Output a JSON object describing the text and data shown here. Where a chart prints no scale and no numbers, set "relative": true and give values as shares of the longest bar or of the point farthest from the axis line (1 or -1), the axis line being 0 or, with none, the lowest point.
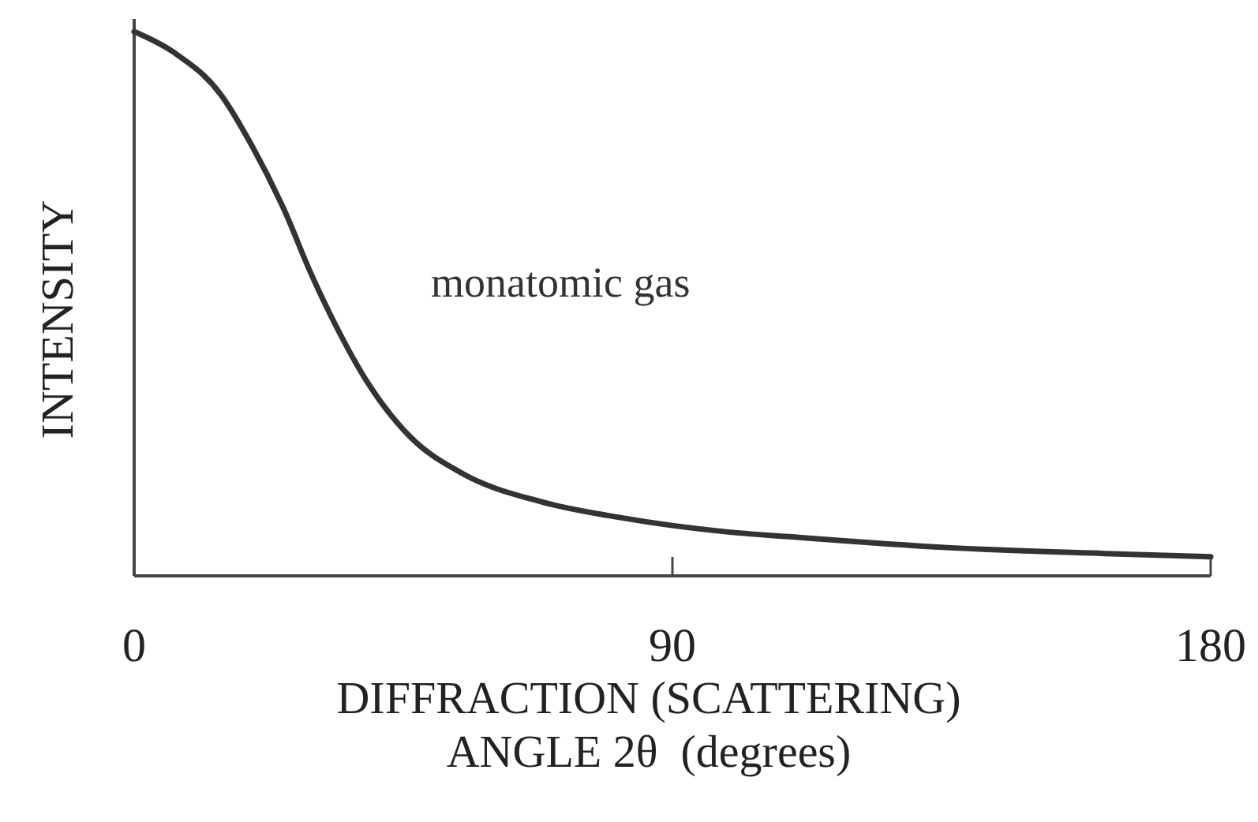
{
  "chart_data": {
    "type": "line",
    "relative": true,
    "xlabel": "DIFFRACTION (SCATTERING)\nANGLE 2θ  (degrees)",
    "ylabel": "INTENSITY",
    "annotations": [
      "monatomic gas"
    ],
    "xlim": [
      0,
      180
    ],
    "xticks": [
      0,
      90,
      180
    ],
    "marker": "none",
    "line_style": "solid",
    "grid": false,
    "series": [
      {
        "color": "#333333",
        "x": [
          0,
          6.6,
          14.5,
          19.8,
          25.1,
          29.5,
          33.8,
          39.1,
          46.2,
          54.9,
          68.1,
          81.3,
          99,
          109.5,
          135.9,
          162.3,
          180
        ],
        "values": [
          1,
          0.962,
          0.884,
          0.788,
          0.672,
          0.557,
          0.458,
          0.354,
          0.255,
          0.188,
          0.136,
          0.107,
          0.081,
          0.072,
          0.052,
          0.041,
          0.035
        ]
      }
    ]
  }
}
